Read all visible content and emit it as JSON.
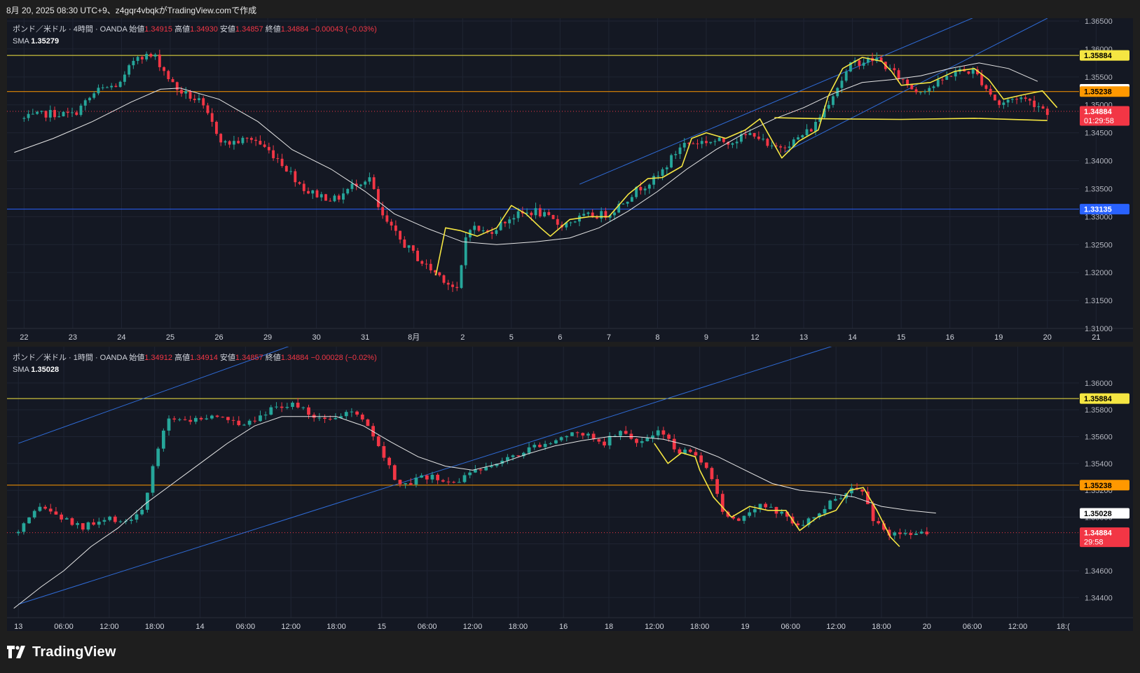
{
  "caption": "8月 20, 2025 08:30 UTC+9、z4gqr4vbqkがTradingView.comで作成",
  "brand": "TradingView",
  "colors": {
    "up": "#26a69a",
    "down": "#f23645",
    "bg": "#141823",
    "grid": "#1f2433",
    "sma": "#e6e6e6",
    "yellow": "#f5e642",
    "orange": "#ff9800",
    "blue": "#2962ff"
  },
  "top_pane": {
    "header": {
      "symbol": "ポンド／米ドル · 4時間 · OANDA",
      "open_label": "始値",
      "open": "1.34915",
      "high_label": "高値",
      "high": "1.34930",
      "low_label": "安値",
      "low": "1.34857",
      "close_label": "終値",
      "close": "1.34884",
      "change": "−0.00043 (−0.03%)",
      "sma_label": "SMA",
      "sma_value": "1.35279"
    }
  },
  "bottom_pane": {
    "header": {
      "symbol": "ポンド／米ドル · 1時間 · OANDA",
      "open_label": "始値",
      "open": "1.34912",
      "high_label": "高値",
      "high": "1.34914",
      "low_label": "安値",
      "low": "1.34857",
      "close_label": "終値",
      "close": "1.34884",
      "change": "−0.00028 (−0.02%)",
      "sma_label": "SMA",
      "sma_value": "1.35028"
    }
  },
  "chart_data": [
    {
      "type": "candlestick",
      "title": "ポンド／米ドル · 4時間 · OANDA",
      "ylim": [
        1.31,
        1.365
      ],
      "y_ticks": [
        "1.31000",
        "1.31500",
        "1.32000",
        "1.32500",
        "1.33000",
        "1.33500",
        "1.34000",
        "1.34500",
        "1.35000",
        "1.35500",
        "1.36000",
        "1.36500"
      ],
      "x_ticks": [
        "22",
        "23",
        "24",
        "25",
        "26",
        "29",
        "30",
        "31",
        "8月",
        "2",
        "5",
        "6",
        "7",
        "8",
        "9",
        "12",
        "13",
        "14",
        "15",
        "16",
        "19",
        "20",
        "21"
      ],
      "price_labels": [
        {
          "value": "1.35884",
          "price": 1.35884,
          "color": "#f5e642",
          "text_color": "#000000"
        },
        {
          "value": "1.35279",
          "price": 1.35279,
          "color": "#ffffff",
          "text_color": "#000000"
        },
        {
          "value": "1.35238",
          "price": 1.35238,
          "color": "#ff9800",
          "text_color": "#000000"
        },
        {
          "value": "1.34884",
          "price": 1.34884,
          "color": "#f23645",
          "text_color": "#ffffff",
          "sub": "01:29:58"
        },
        {
          "value": "1.33135",
          "price": 1.33135,
          "color": "#2962ff",
          "text_color": "#ffffff"
        }
      ],
      "hlines": [
        {
          "price": 1.35884,
          "color": "#f5e642"
        },
        {
          "price": 1.35238,
          "color": "#ff9800"
        },
        {
          "price": 1.33135,
          "color": "#2962ff"
        },
        {
          "price": 1.34884,
          "color": "#f23645",
          "dotted": true
        }
      ],
      "channel": [
        {
          "from": [
            11.4,
            1.3358
          ],
          "to": [
            20.0,
            1.3675
          ]
        },
        {
          "from": [
            15.6,
            1.3415
          ],
          "to": [
            21.0,
            1.3655
          ]
        }
      ],
      "anchors": [
        [
          0,
          1.3475
        ],
        [
          0.5,
          1.3485
        ],
        [
          1.0,
          1.3482
        ],
        [
          1.5,
          1.3525
        ],
        [
          2.0,
          1.3538
        ],
        [
          2.3,
          1.359
        ],
        [
          2.7,
          1.3585
        ],
        [
          3.1,
          1.353
        ],
        [
          3.6,
          1.3505
        ],
        [
          4.1,
          1.343
        ],
        [
          4.7,
          1.344
        ],
        [
          5.2,
          1.3405
        ],
        [
          5.8,
          1.3345
        ],
        [
          6.4,
          1.333
        ],
        [
          6.8,
          1.336
        ],
        [
          7.1,
          1.337
        ],
        [
          7.3,
          1.3305
        ],
        [
          7.7,
          1.326
        ],
        [
          8.2,
          1.3215
        ],
        [
          8.6,
          1.319
        ],
        [
          8.9,
          1.3165
        ],
        [
          9.1,
          1.3285
        ],
        [
          9.5,
          1.327
        ],
        [
          10.0,
          1.33
        ],
        [
          10.5,
          1.331
        ],
        [
          11.0,
          1.3285
        ],
        [
          11.5,
          1.33
        ],
        [
          12.0,
          1.3305
        ],
        [
          12.6,
          1.335
        ],
        [
          13.0,
          1.337
        ],
        [
          13.5,
          1.343
        ],
        [
          14.0,
          1.3435
        ],
        [
          14.5,
          1.3435
        ],
        [
          15.0,
          1.345
        ],
        [
          15.3,
          1.342
        ],
        [
          15.8,
          1.3435
        ],
        [
          16.2,
          1.346
        ],
        [
          16.6,
          1.352
        ],
        [
          17.0,
          1.3575
        ],
        [
          17.5,
          1.3582
        ],
        [
          17.8,
          1.356
        ],
        [
          18.3,
          1.3525
        ],
        [
          18.7,
          1.3535
        ],
        [
          19.1,
          1.356
        ],
        [
          19.5,
          1.356
        ],
        [
          20.0,
          1.35
        ],
        [
          20.4,
          1.3515
        ],
        [
          20.8,
          1.35
        ],
        [
          21.0,
          1.3488
        ]
      ],
      "sma_line": [
        [
          -0.2,
          1.3415
        ],
        [
          0.6,
          1.344
        ],
        [
          1.4,
          1.347
        ],
        [
          2.2,
          1.3505
        ],
        [
          2.8,
          1.3528
        ],
        [
          3.2,
          1.353
        ],
        [
          4.0,
          1.351
        ],
        [
          4.8,
          1.347
        ],
        [
          5.5,
          1.342
        ],
        [
          6.3,
          1.3385
        ],
        [
          7.0,
          1.3345
        ],
        [
          7.6,
          1.3305
        ],
        [
          8.3,
          1.3278
        ],
        [
          9.0,
          1.3255
        ],
        [
          9.7,
          1.325
        ],
        [
          10.5,
          1.3255
        ],
        [
          11.2,
          1.3262
        ],
        [
          11.8,
          1.328
        ],
        [
          12.4,
          1.331
        ],
        [
          13.0,
          1.3345
        ],
        [
          13.6,
          1.3385
        ],
        [
          14.2,
          1.342
        ],
        [
          14.8,
          1.345
        ],
        [
          15.4,
          1.3475
        ],
        [
          16.0,
          1.3495
        ],
        [
          16.6,
          1.352
        ],
        [
          17.2,
          1.354
        ],
        [
          17.8,
          1.3545
        ],
        [
          18.4,
          1.3552
        ],
        [
          19.0,
          1.3565
        ],
        [
          19.6,
          1.3575
        ],
        [
          20.2,
          1.3565
        ],
        [
          20.8,
          1.3542
        ]
      ],
      "fast_line": [
        [
          8.45,
          1.3195
        ],
        [
          8.65,
          1.328
        ],
        [
          8.95,
          1.3275
        ],
        [
          9.3,
          1.3265
        ],
        [
          9.7,
          1.328
        ],
        [
          10.0,
          1.332
        ],
        [
          10.3,
          1.3305
        ],
        [
          10.6,
          1.328
        ],
        [
          10.8,
          1.3265
        ],
        [
          11.2,
          1.3295
        ],
        [
          11.6,
          1.33
        ],
        [
          12.0,
          1.33
        ],
        [
          12.4,
          1.334
        ],
        [
          12.8,
          1.3368
        ],
        [
          13.1,
          1.337
        ],
        [
          13.5,
          1.339
        ],
        [
          13.7,
          1.344
        ],
        [
          14.0,
          1.345
        ],
        [
          14.4,
          1.344
        ],
        [
          14.8,
          1.3455
        ],
        [
          15.1,
          1.3475
        ],
        [
          15.55,
          1.3405
        ],
        [
          15.9,
          1.3435
        ],
        [
          16.3,
          1.3455
        ],
        [
          16.5,
          1.3515
        ],
        [
          16.8,
          1.3565
        ],
        [
          17.2,
          1.3585
        ],
        [
          17.6,
          1.3578
        ],
        [
          17.8,
          1.356
        ],
        [
          18.0,
          1.3535
        ],
        [
          18.6,
          1.354
        ],
        [
          19.1,
          1.356
        ],
        [
          19.5,
          1.3565
        ],
        [
          19.8,
          1.3545
        ],
        [
          20.1,
          1.351
        ],
        [
          20.5,
          1.3518
        ],
        [
          20.9,
          1.3525
        ],
        [
          21.2,
          1.3495
        ]
      ],
      "flat_line": [
        [
          15.4,
          1.3477
        ],
        [
          16.5,
          1.3475
        ],
        [
          18.0,
          1.3474
        ],
        [
          19.5,
          1.3476
        ],
        [
          21.0,
          1.3472
        ]
      ],
      "candle_count": 235,
      "xspan": [
        -0.35,
        21.65
      ]
    },
    {
      "type": "candlestick",
      "title": "ポンド／米ドル · 1時間 · OANDA",
      "ylim": [
        1.3425,
        1.3625
      ],
      "y_ticks": [
        "1.34400",
        "1.34600",
        "1.34800",
        "1.35000",
        "1.35200",
        "1.35400",
        "1.35600",
        "1.35800",
        "1.36000"
      ],
      "x_ticks": [
        "13",
        "06:00",
        "12:00",
        "18:00",
        "14",
        "06:00",
        "12:00",
        "18:00",
        "15",
        "06:00",
        "12:00",
        "18:00",
        "16",
        "18",
        "12:00",
        "18:00",
        "19",
        "06:00",
        "12:00",
        "18:00",
        "20",
        "06:00",
        "12:00",
        "18:("
      ],
      "price_labels": [
        {
          "value": "1.35884",
          "price": 1.35884,
          "color": "#f5e642",
          "text_color": "#000000"
        },
        {
          "value": "1.35238",
          "price": 1.35238,
          "color": "#ff9800",
          "text_color": "#000000"
        },
        {
          "value": "1.35028",
          "price": 1.35028,
          "color": "#ffffff",
          "text_color": "#000000"
        },
        {
          "value": "1.34884",
          "price": 1.34884,
          "color": "#f23645",
          "text_color": "#ffffff",
          "sub": "29:58"
        }
      ],
      "hlines": [
        {
          "price": 1.35884,
          "color": "#f5e642"
        },
        {
          "price": 1.35238,
          "color": "#ff9800"
        },
        {
          "price": 1.34884,
          "color": "#f23645",
          "dotted": true
        }
      ],
      "channel": [
        {
          "from": [
            0.0,
            1.3435
          ],
          "to": [
            23.0,
            1.3682
          ]
        },
        {
          "from": [
            0.0,
            1.3555
          ],
          "to": [
            7.0,
            1.364
          ]
        }
      ],
      "anchors": [
        [
          0,
          1.3488
        ],
        [
          0.5,
          1.3508
        ],
        [
          1.0,
          1.3498
        ],
        [
          1.4,
          1.3492
        ],
        [
          2.0,
          1.3498
        ],
        [
          2.5,
          1.3498
        ],
        [
          2.8,
          1.351
        ],
        [
          3.0,
          1.3542
        ],
        [
          3.3,
          1.3575
        ],
        [
          3.8,
          1.3572
        ],
        [
          4.3,
          1.3575
        ],
        [
          5.0,
          1.357
        ],
        [
          5.5,
          1.358
        ],
        [
          6.0,
          1.3585
        ],
        [
          6.5,
          1.3575
        ],
        [
          7.0,
          1.3575
        ],
        [
          7.5,
          1.3578
        ],
        [
          7.8,
          1.356
        ],
        [
          8.1,
          1.354
        ],
        [
          8.4,
          1.3522
        ],
        [
          9.0,
          1.353
        ],
        [
          9.5,
          1.3525
        ],
        [
          10.0,
          1.3532
        ],
        [
          10.5,
          1.3542
        ],
        [
          11.0,
          1.3548
        ],
        [
          11.5,
          1.3555
        ],
        [
          12.0,
          1.356
        ],
        [
          12.5,
          1.3562
        ],
        [
          12.9,
          1.3556
        ],
        [
          13.2,
          1.3564
        ],
        [
          13.7,
          1.3556
        ],
        [
          14.1,
          1.3564
        ],
        [
          14.5,
          1.355
        ],
        [
          14.9,
          1.3545
        ],
        [
          15.2,
          1.3532
        ],
        [
          15.5,
          1.3505
        ],
        [
          15.8,
          1.3498
        ],
        [
          16.3,
          1.351
        ],
        [
          16.8,
          1.3502
        ],
        [
          17.2,
          1.3495
        ],
        [
          17.6,
          1.35
        ],
        [
          18.0,
          1.3515
        ],
        [
          18.4,
          1.352
        ],
        [
          18.6,
          1.3518
        ],
        [
          18.8,
          1.35
        ],
        [
          19.1,
          1.3488
        ],
        [
          19.5,
          1.3488
        ],
        [
          20.0,
          1.3488
        ]
      ],
      "sma_line": [
        [
          -0.1,
          1.3432
        ],
        [
          0.5,
          1.3448
        ],
        [
          1.0,
          1.346
        ],
        [
          1.6,
          1.3478
        ],
        [
          2.2,
          1.3492
        ],
        [
          2.8,
          1.351
        ],
        [
          3.4,
          1.3525
        ],
        [
          4.0,
          1.354
        ],
        [
          4.6,
          1.3555
        ],
        [
          5.2,
          1.3568
        ],
        [
          5.8,
          1.3575
        ],
        [
          6.4,
          1.3575
        ],
        [
          7.0,
          1.3575
        ],
        [
          7.6,
          1.3568
        ],
        [
          8.2,
          1.3556
        ],
        [
          8.8,
          1.3545
        ],
        [
          9.4,
          1.3538
        ],
        [
          10.0,
          1.3535
        ],
        [
          10.6,
          1.354
        ],
        [
          11.2,
          1.3547
        ],
        [
          11.8,
          1.3553
        ],
        [
          12.4,
          1.3557
        ],
        [
          13.0,
          1.356
        ],
        [
          13.6,
          1.356
        ],
        [
          14.2,
          1.3558
        ],
        [
          14.8,
          1.3553
        ],
        [
          15.4,
          1.3545
        ],
        [
          16.0,
          1.3535
        ],
        [
          16.6,
          1.3525
        ],
        [
          17.2,
          1.352
        ],
        [
          17.8,
          1.3518
        ],
        [
          18.4,
          1.3515
        ],
        [
          19.0,
          1.3508
        ],
        [
          19.6,
          1.3505
        ],
        [
          20.2,
          1.3503
        ]
      ],
      "fast_line": [
        [
          14.0,
          1.3555
        ],
        [
          14.3,
          1.354
        ],
        [
          14.6,
          1.3548
        ],
        [
          14.9,
          1.3545
        ],
        [
          15.0,
          1.3535
        ],
        [
          15.3,
          1.3515
        ],
        [
          15.7,
          1.35
        ],
        [
          16.1,
          1.3508
        ],
        [
          16.5,
          1.3505
        ],
        [
          16.9,
          1.3505
        ],
        [
          17.2,
          1.349
        ],
        [
          17.6,
          1.35
        ],
        [
          18.0,
          1.3505
        ],
        [
          18.3,
          1.352
        ],
        [
          18.6,
          1.3522
        ],
        [
          18.9,
          1.3505
        ],
        [
          19.2,
          1.3485
        ],
        [
          19.4,
          1.3478
        ]
      ],
      "candle_count": 170,
      "xspan": [
        -0.25,
        23.35
      ]
    }
  ]
}
